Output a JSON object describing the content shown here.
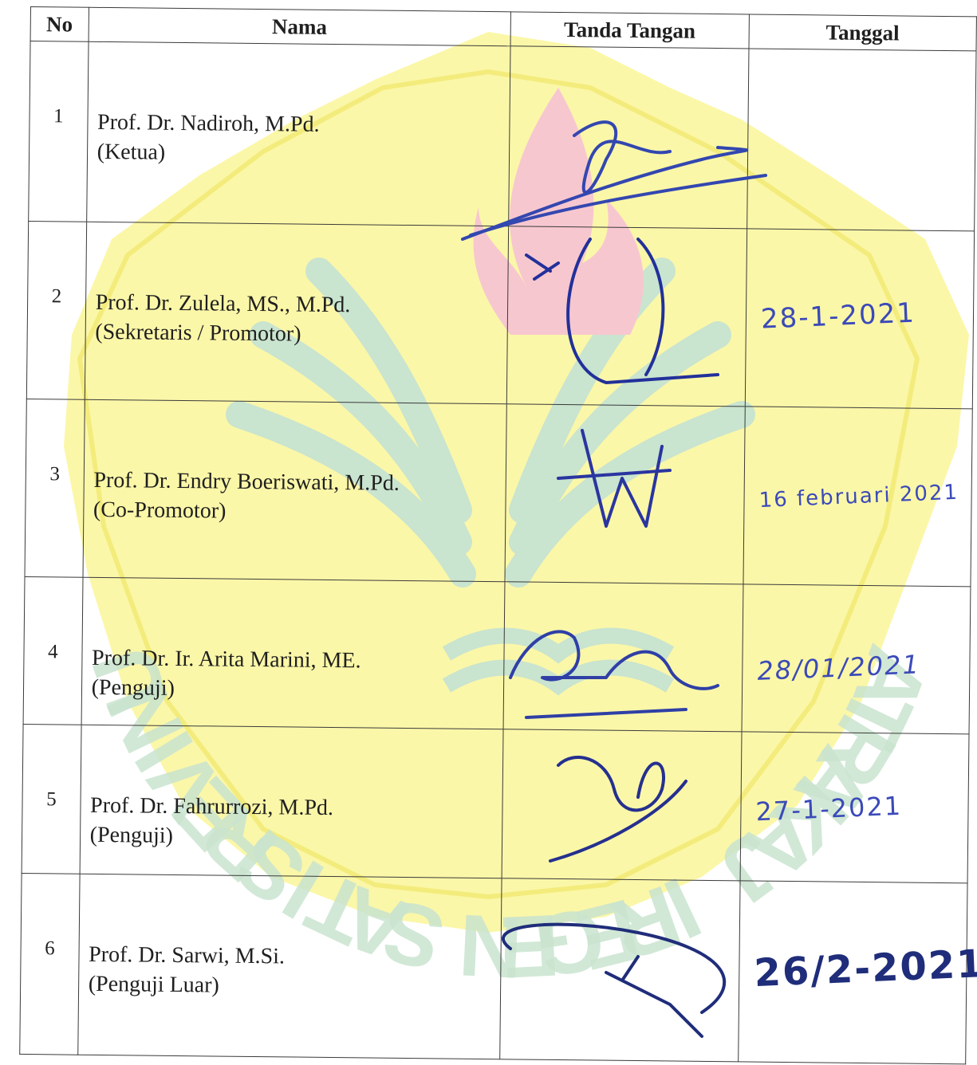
{
  "table": {
    "headers": {
      "no": "No",
      "nama": "Nama",
      "tanda_tangan": "Tanda Tangan",
      "tanggal": "Tanggal"
    },
    "rows": [
      {
        "no": "1",
        "name": "Prof. Dr. Nadiroh, M.Pd.",
        "role": "(Ketua)",
        "date": ""
      },
      {
        "no": "2",
        "name": "Prof. Dr. Zulela, MS., M.Pd.",
        "role": "(Sekretaris / Promotor)",
        "date": "28-1-2021"
      },
      {
        "no": "3",
        "name": "Prof. Dr. Endry Boeriswati, M.Pd.",
        "role": "(Co-Promotor)",
        "date": "16 februari 2021"
      },
      {
        "no": "4",
        "name": "Prof. Dr. Ir. Arita Marini, ME.",
        "role": "(Penguji)",
        "date": "28/01/2021"
      },
      {
        "no": "5",
        "name": "Prof. Dr. Fahrurrozi, M.Pd.",
        "role": "(Penguji)",
        "date": "27-1-2021"
      },
      {
        "no": "6",
        "name": "Prof. Dr. Sarwi, M.Si.",
        "role": "(Penguji Luar)",
        "date": "26/2-2021"
      }
    ]
  },
  "watermark": {
    "text": "UNIVERSITAS NEGERI JAKARTA",
    "colors": {
      "seal": "#fbf7a8",
      "wings": "#c9e4cf",
      "flame": "#f7c7cf",
      "ink": "#2f3fa6"
    }
  }
}
